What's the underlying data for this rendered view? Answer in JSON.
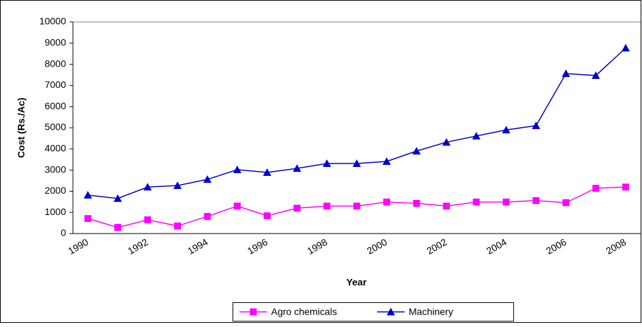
{
  "chart_data": {
    "type": "line",
    "x_label": "Year",
    "y_label": "Cost (Rs./Ac)",
    "categories": [
      "1990",
      null,
      "1992",
      null,
      "1994",
      null,
      "1996",
      null,
      "1998",
      null,
      "2000",
      null,
      "2002",
      null,
      "2004",
      null,
      "2006",
      null,
      "2008"
    ],
    "series": [
      {
        "name": "Agro chemicals",
        "color": "#ff00ff",
        "marker": "square",
        "values": [
          710,
          290,
          650,
          360,
          810,
          1300,
          840,
          1200,
          1300,
          1300,
          1490,
          1430,
          1300,
          1490,
          1490,
          1560,
          1460,
          2140,
          2200
        ]
      },
      {
        "name": "Machinery",
        "color": "#0000cc",
        "marker": "triangle",
        "values": [
          1820,
          1660,
          2200,
          2270,
          2560,
          3020,
          2890,
          3080,
          3310,
          3310,
          3410,
          3900,
          4320,
          4610,
          4900,
          5100,
          7560,
          7470,
          8770
        ]
      }
    ],
    "ylim": [
      0,
      10000
    ],
    "yticks": [
      0,
      1000,
      2000,
      3000,
      4000,
      5000,
      6000,
      7000,
      8000,
      9000,
      10000
    ],
    "grid": false,
    "legend": "bottom"
  }
}
